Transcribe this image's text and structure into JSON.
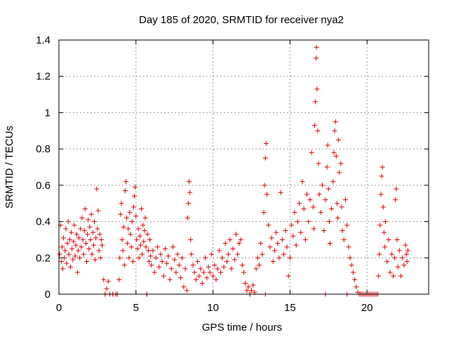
{
  "chart_data": {
    "type": "scatter",
    "title": "Day 185 of 2020, SRMTID for receiver nya2",
    "xlabel": "GPS time / hours",
    "ylabel": "SRMTID / TECUs",
    "xlim": [
      0,
      24
    ],
    "ylim": [
      0,
      1.4
    ],
    "xticks": [
      0,
      5,
      10,
      15,
      20
    ],
    "xtick_labels": [
      "0",
      "5",
      "10",
      "15",
      "20"
    ],
    "yticks": [
      0,
      0.2,
      0.4,
      0.6,
      0.8,
      1.0,
      1.2,
      1.4
    ],
    "ytick_labels": [
      "0",
      "0.2",
      "0.4",
      "0.6",
      "0.8",
      "1",
      "1.2",
      "1.4"
    ],
    "grid": true,
    "marker": "+",
    "color": "#e00000",
    "series": [
      {
        "name": "SRMTID",
        "points": [
          [
            0.05,
            0.22
          ],
          [
            0.1,
            0.38
          ],
          [
            0.15,
            0.18
          ],
          [
            0.2,
            0.26
          ],
          [
            0.25,
            0.14
          ],
          [
            0.3,
            0.31
          ],
          [
            0.35,
            0.2
          ],
          [
            0.4,
            0.24
          ],
          [
            0.45,
            0.36
          ],
          [
            0.5,
            0.17
          ],
          [
            0.55,
            0.28
          ],
          [
            0.6,
            0.4
          ],
          [
            0.65,
            0.22
          ],
          [
            0.7,
            0.3
          ],
          [
            0.75,
            0.15
          ],
          [
            0.8,
            0.34
          ],
          [
            0.85,
            0.25
          ],
          [
            0.9,
            0.19
          ],
          [
            0.95,
            0.29
          ],
          [
            1.0,
            0.38
          ],
          [
            1.05,
            0.21
          ],
          [
            1.1,
            0.27
          ],
          [
            1.15,
            0.33
          ],
          [
            1.2,
            0.12
          ],
          [
            1.25,
            0.24
          ],
          [
            1.3,
            0.31
          ],
          [
            1.35,
            0.2
          ],
          [
            1.4,
            0.36
          ],
          [
            1.45,
            0.26
          ],
          [
            1.5,
            0.42
          ],
          [
            1.55,
            0.3
          ],
          [
            1.6,
            0.22
          ],
          [
            1.65,
            0.35
          ],
          [
            1.7,
            0.47
          ],
          [
            1.75,
            0.28
          ],
          [
            1.8,
            0.18
          ],
          [
            1.85,
            0.33
          ],
          [
            1.9,
            0.41
          ],
          [
            1.95,
            0.25
          ],
          [
            2.0,
            0.37
          ],
          [
            2.05,
            0.3
          ],
          [
            2.1,
            0.44
          ],
          [
            2.15,
            0.22
          ],
          [
            2.2,
            0.34
          ],
          [
            2.25,
            0.27
          ],
          [
            2.3,
            0.4
          ],
          [
            2.35,
            0.19
          ],
          [
            2.4,
            0.31
          ],
          [
            2.45,
            0.58
          ],
          [
            2.5,
            0.36
          ],
          [
            2.55,
            0.46
          ],
          [
            2.6,
            0.24
          ],
          [
            2.65,
            0.33
          ],
          [
            2.7,
            0.2
          ],
          [
            2.75,
            0.3
          ],
          [
            2.8,
            0.27
          ],
          [
            2.9,
            0.08
          ],
          [
            3.0,
            0.0
          ],
          [
            3.1,
            0.03
          ],
          [
            3.2,
            0.07
          ],
          [
            3.3,
            0.0
          ],
          [
            3.5,
            0.0
          ],
          [
            3.7,
            0.0
          ],
          [
            3.8,
            0.0
          ],
          [
            3.9,
            0.08
          ],
          [
            3.95,
            0.2
          ],
          [
            4.0,
            0.44
          ],
          [
            4.05,
            0.5
          ],
          [
            4.1,
            0.3
          ],
          [
            4.15,
            0.24
          ],
          [
            4.2,
            0.37
          ],
          [
            4.25,
            0.16
          ],
          [
            4.3,
            0.57
          ],
          [
            4.35,
            0.62
          ],
          [
            4.4,
            0.42
          ],
          [
            4.45,
            0.28
          ],
          [
            4.5,
            0.36
          ],
          [
            4.55,
            0.2
          ],
          [
            4.6,
            0.45
          ],
          [
            4.65,
            0.33
          ],
          [
            4.7,
            0.26
          ],
          [
            4.75,
            0.4
          ],
          [
            4.8,
            0.18
          ],
          [
            4.85,
            0.48
          ],
          [
            4.9,
            0.54
          ],
          [
            4.95,
            0.59
          ],
          [
            5.0,
            0.43
          ],
          [
            5.05,
            0.3
          ],
          [
            5.1,
            0.25
          ],
          [
            5.15,
            0.36
          ],
          [
            5.2,
            0.2
          ],
          [
            5.25,
            0.32
          ],
          [
            5.3,
            0.27
          ],
          [
            5.35,
            0.47
          ],
          [
            5.4,
            0.22
          ],
          [
            5.45,
            0.38
          ],
          [
            5.5,
            0.29
          ],
          [
            5.55,
            0.35
          ],
          [
            5.6,
            0.42
          ],
          [
            5.65,
            0.26
          ],
          [
            5.7,
            0.0
          ],
          [
            5.75,
            0.33
          ],
          [
            5.8,
            0.24
          ],
          [
            5.85,
            0.18
          ],
          [
            5.9,
            0.3
          ],
          [
            5.95,
            0.21
          ],
          [
            6.0,
            0.16
          ],
          [
            6.1,
            0.24
          ],
          [
            6.2,
            0.12
          ],
          [
            6.3,
            0.2
          ],
          [
            6.4,
            0.26
          ],
          [
            6.5,
            0.15
          ],
          [
            6.6,
            0.22
          ],
          [
            6.7,
            0.18
          ],
          [
            6.8,
            0.1
          ],
          [
            6.9,
            0.25
          ],
          [
            7.0,
            0.17
          ],
          [
            7.1,
            0.21
          ],
          [
            7.2,
            0.08
          ],
          [
            7.3,
            0.14
          ],
          [
            7.4,
            0.26
          ],
          [
            7.5,
            0.19
          ],
          [
            7.6,
            0.12
          ],
          [
            7.7,
            0.22
          ],
          [
            7.8,
            0.16
          ],
          [
            7.9,
            0.09
          ],
          [
            8.0,
            0.2
          ],
          [
            8.1,
            0.04
          ],
          [
            8.2,
            0.14
          ],
          [
            8.3,
            0.02
          ],
          [
            8.35,
            0.42
          ],
          [
            8.4,
            0.5
          ],
          [
            8.45,
            0.62
          ],
          [
            8.5,
            0.56
          ],
          [
            8.55,
            0.3
          ],
          [
            8.6,
            0.22
          ],
          [
            8.7,
            0.16
          ],
          [
            8.8,
            0.12
          ],
          [
            8.9,
            0.08
          ],
          [
            9.0,
            0.18
          ],
          [
            9.1,
            0.1
          ],
          [
            9.2,
            0.14
          ],
          [
            9.3,
            0.06
          ],
          [
            9.4,
            0.12
          ],
          [
            9.5,
            0.2
          ],
          [
            9.6,
            0.09
          ],
          [
            9.7,
            0.15
          ],
          [
            9.8,
            0.12
          ],
          [
            9.9,
            0.22
          ],
          [
            10.0,
            0.1
          ],
          [
            10.1,
            0.16
          ],
          [
            10.2,
            0.08
          ],
          [
            10.3,
            0.14
          ],
          [
            10.4,
            0.24
          ],
          [
            10.5,
            0.12
          ],
          [
            10.6,
            0.2
          ],
          [
            10.7,
            0.15
          ],
          [
            10.8,
            0.28
          ],
          [
            10.9,
            0.18
          ],
          [
            11.0,
            0.22
          ],
          [
            11.1,
            0.3
          ],
          [
            11.2,
            0.14
          ],
          [
            11.3,
            0.25
          ],
          [
            11.4,
            0.19
          ],
          [
            11.5,
            0.33
          ],
          [
            11.6,
            0.22
          ],
          [
            11.7,
            0.28
          ],
          [
            11.8,
            0.3
          ],
          [
            11.9,
            0.16
          ],
          [
            12.0,
            0.12
          ],
          [
            12.1,
            0.06
          ],
          [
            12.2,
            0.02
          ],
          [
            12.3,
            0.04
          ],
          [
            12.4,
            0.0
          ],
          [
            12.5,
            0.02
          ],
          [
            12.6,
            0.05
          ],
          [
            12.7,
            0.01
          ],
          [
            12.8,
            0.14
          ],
          [
            12.9,
            0.2
          ],
          [
            13.0,
            0.16
          ],
          [
            13.1,
            0.28
          ],
          [
            13.2,
            0.22
          ],
          [
            13.3,
            0.45
          ],
          [
            13.35,
            0.6
          ],
          [
            13.4,
            0.75
          ],
          [
            13.45,
            0.83
          ],
          [
            13.5,
            0.55
          ],
          [
            13.6,
            0.38
          ],
          [
            13.7,
            0.26
          ],
          [
            13.8,
            0.31
          ],
          [
            13.9,
            0.18
          ],
          [
            14.0,
            0.24
          ],
          [
            14.1,
            0.34
          ],
          [
            14.2,
            0.28
          ],
          [
            14.3,
            0.2
          ],
          [
            14.4,
            0.56
          ],
          [
            14.5,
            0.3
          ],
          [
            14.6,
            0.22
          ],
          [
            14.7,
            0.35
          ],
          [
            14.8,
            0.26
          ],
          [
            14.9,
            0.1
          ],
          [
            15.0,
            0.2
          ],
          [
            15.1,
            0.38
          ],
          [
            15.2,
            0.32
          ],
          [
            15.3,
            0.45
          ],
          [
            15.4,
            0.27
          ],
          [
            15.5,
            0.4
          ],
          [
            15.6,
            0.5
          ],
          [
            15.7,
            0.34
          ],
          [
            15.8,
            0.62
          ],
          [
            15.9,
            0.47
          ],
          [
            16.0,
            0.3
          ],
          [
            16.1,
            0.55
          ],
          [
            16.2,
            0.4
          ],
          [
            16.3,
            0.52
          ],
          [
            16.4,
            0.78
          ],
          [
            16.5,
            0.48
          ],
          [
            16.55,
            0.36
          ],
          [
            16.6,
            0.93
          ],
          [
            16.65,
            1.06
          ],
          [
            16.7,
            1.3
          ],
          [
            16.72,
            1.36
          ],
          [
            16.75,
            1.13
          ],
          [
            16.8,
            0.9
          ],
          [
            16.85,
            0.72
          ],
          [
            16.9,
            0.55
          ],
          [
            17.0,
            0.45
          ],
          [
            17.1,
            0.6
          ],
          [
            17.2,
            0.35
          ],
          [
            17.3,
            0.52
          ],
          [
            17.4,
            0.7
          ],
          [
            17.45,
            0.82
          ],
          [
            17.5,
            0.58
          ],
          [
            17.55,
            0.4
          ],
          [
            17.6,
            0.28
          ],
          [
            17.7,
            0.47
          ],
          [
            17.8,
            0.62
          ],
          [
            17.85,
            0.78
          ],
          [
            17.9,
            0.9
          ],
          [
            17.95,
            0.95
          ],
          [
            18.0,
            0.76
          ],
          [
            18.05,
            0.5
          ],
          [
            18.1,
            0.42
          ],
          [
            18.15,
            0.85
          ],
          [
            18.2,
            0.67
          ],
          [
            18.3,
            0.72
          ],
          [
            18.35,
            0.48
          ],
          [
            18.4,
            0.35
          ],
          [
            18.5,
            0.3
          ],
          [
            18.6,
            0.52
          ],
          [
            18.7,
            0.38
          ],
          [
            18.8,
            0.26
          ],
          [
            18.9,
            0.2
          ],
          [
            19.0,
            0.16
          ],
          [
            19.1,
            0.12
          ],
          [
            19.2,
            0.08
          ],
          [
            19.3,
            0.04
          ],
          [
            19.4,
            0.01
          ],
          [
            19.5,
            0.0
          ],
          [
            19.7,
            0.0
          ],
          [
            19.9,
            0.0
          ],
          [
            20.1,
            0.0
          ],
          [
            20.3,
            0.0
          ],
          [
            20.5,
            0.0
          ],
          [
            20.7,
            0.0
          ],
          [
            20.75,
            0.1
          ],
          [
            20.8,
            0.22
          ],
          [
            20.85,
            0.38
          ],
          [
            20.9,
            0.55
          ],
          [
            20.95,
            0.65
          ],
          [
            21.0,
            0.7
          ],
          [
            21.05,
            0.48
          ],
          [
            21.1,
            0.34
          ],
          [
            21.15,
            0.26
          ],
          [
            21.2,
            0.4
          ],
          [
            21.3,
            0.18
          ],
          [
            21.4,
            0.3
          ],
          [
            21.5,
            0.12
          ],
          [
            21.6,
            0.22
          ],
          [
            21.7,
            0.1
          ],
          [
            21.8,
            0.2
          ],
          [
            21.85,
            0.52
          ],
          [
            21.9,
            0.58
          ],
          [
            21.95,
            0.3
          ],
          [
            22.0,
            0.15
          ],
          [
            22.1,
            0.24
          ],
          [
            22.2,
            0.1
          ],
          [
            22.3,
            0.2
          ],
          [
            22.4,
            0.16
          ],
          [
            22.5,
            0.27
          ],
          [
            22.55,
            0.22
          ],
          [
            22.6,
            0.18
          ],
          [
            22.65,
            0.24
          ]
        ]
      }
    ],
    "zero_markers_x": [
      3.0,
      3.3,
      3.5,
      3.7,
      5.7,
      12.4,
      13.4,
      17.3,
      18.7,
      19.6,
      19.8,
      20.0,
      20.2,
      20.4,
      20.6
    ]
  }
}
